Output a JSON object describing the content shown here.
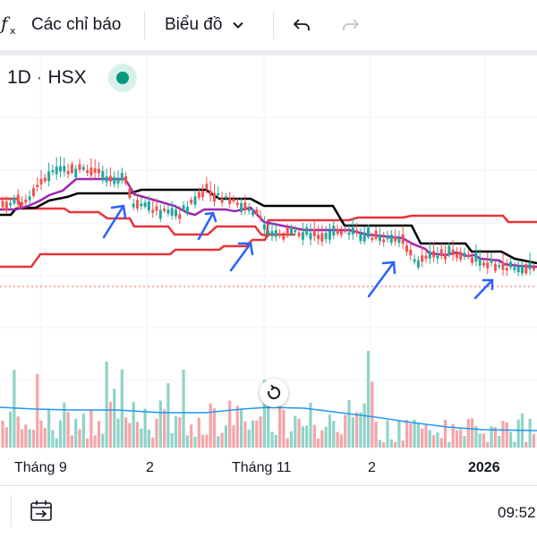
{
  "toolbar": {
    "fx_icon": "fx-icon",
    "indicators_label": "Các chỉ báo",
    "chart_type_label": "Biểu đồ",
    "undo_icon": "undo-icon",
    "redo_icon": "redo-icon"
  },
  "legend": {
    "text": "1D · HSX",
    "status_color": "#089981"
  },
  "time_axis": {
    "labels": [
      "Tháng 9",
      "2",
      "Tháng 11",
      "2",
      "2026"
    ]
  },
  "bottom_bar": {
    "time": "09:52",
    "date_range_icon": "calendar-arrow-icon"
  },
  "colors": {
    "up": "#26a69a",
    "down": "#ef5350",
    "ichimoku_red": "#e8333a",
    "base_line": "#000000",
    "conversion_line": "#9c27b0",
    "volume_ma": "#2196f3",
    "annotation_arrow": "#2962ff"
  }
}
